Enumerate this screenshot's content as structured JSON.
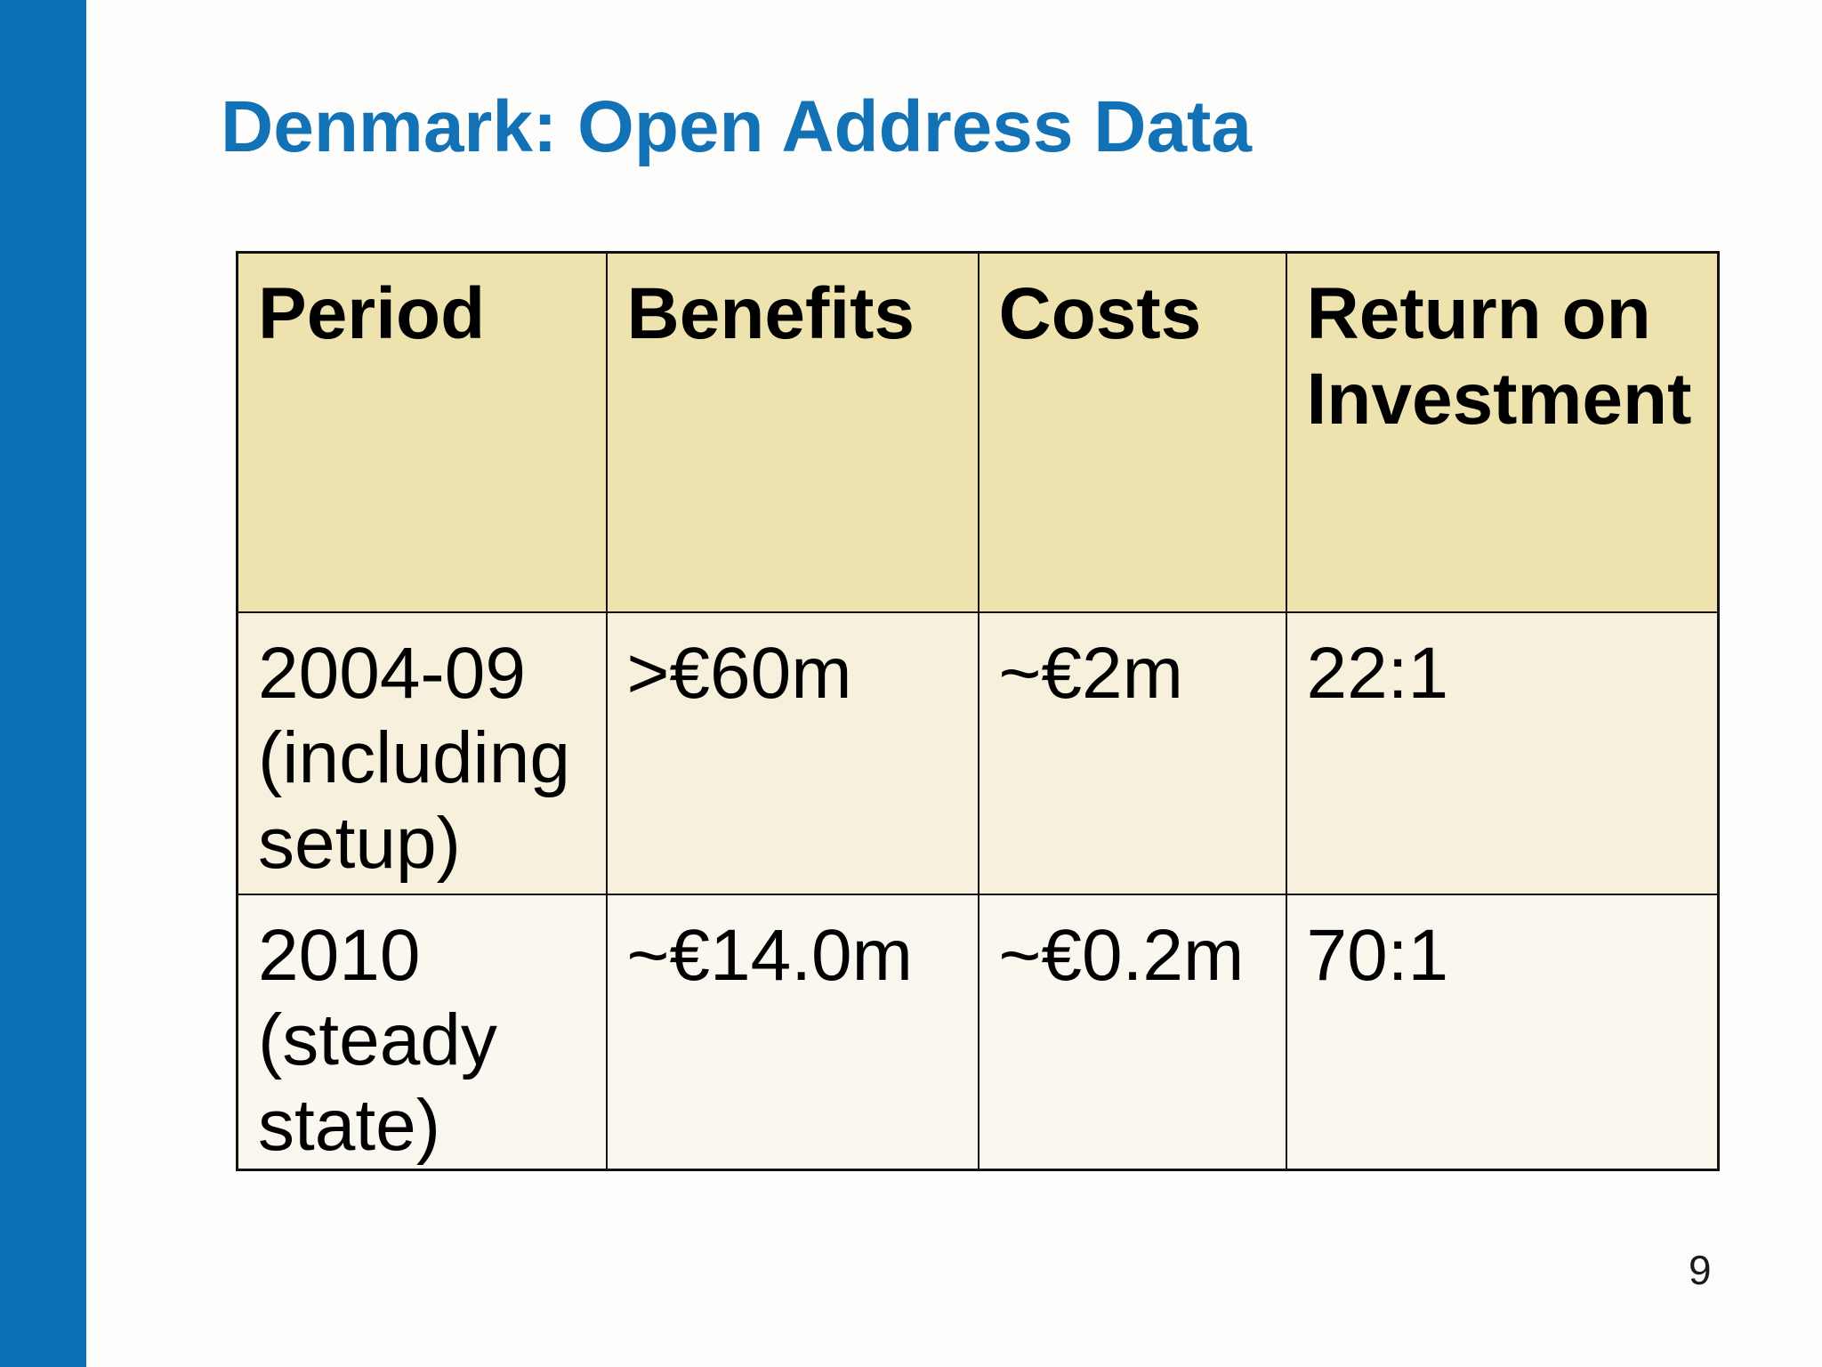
{
  "slide": {
    "title": "Denmark: Open Address Data",
    "page_number": "9"
  },
  "colors": {
    "accent_bar": "#0c70b6",
    "title_text": "#1272b5",
    "table_border": "#121212",
    "header_fill": "#eee3af",
    "row1_fill": "#f6f0dc",
    "row2_fill": "#faf8ee",
    "cell_text": "#000000"
  },
  "table": {
    "columns": [
      "Period",
      "Benefits",
      "Costs",
      "Return on Investment"
    ],
    "rows": [
      [
        "2004-09 (including setup)",
        ">€60m",
        "~€2m",
        "22:1"
      ],
      [
        "2010 (steady state)",
        "~€14.0m",
        "~€0.2m",
        "70:1"
      ]
    ]
  }
}
